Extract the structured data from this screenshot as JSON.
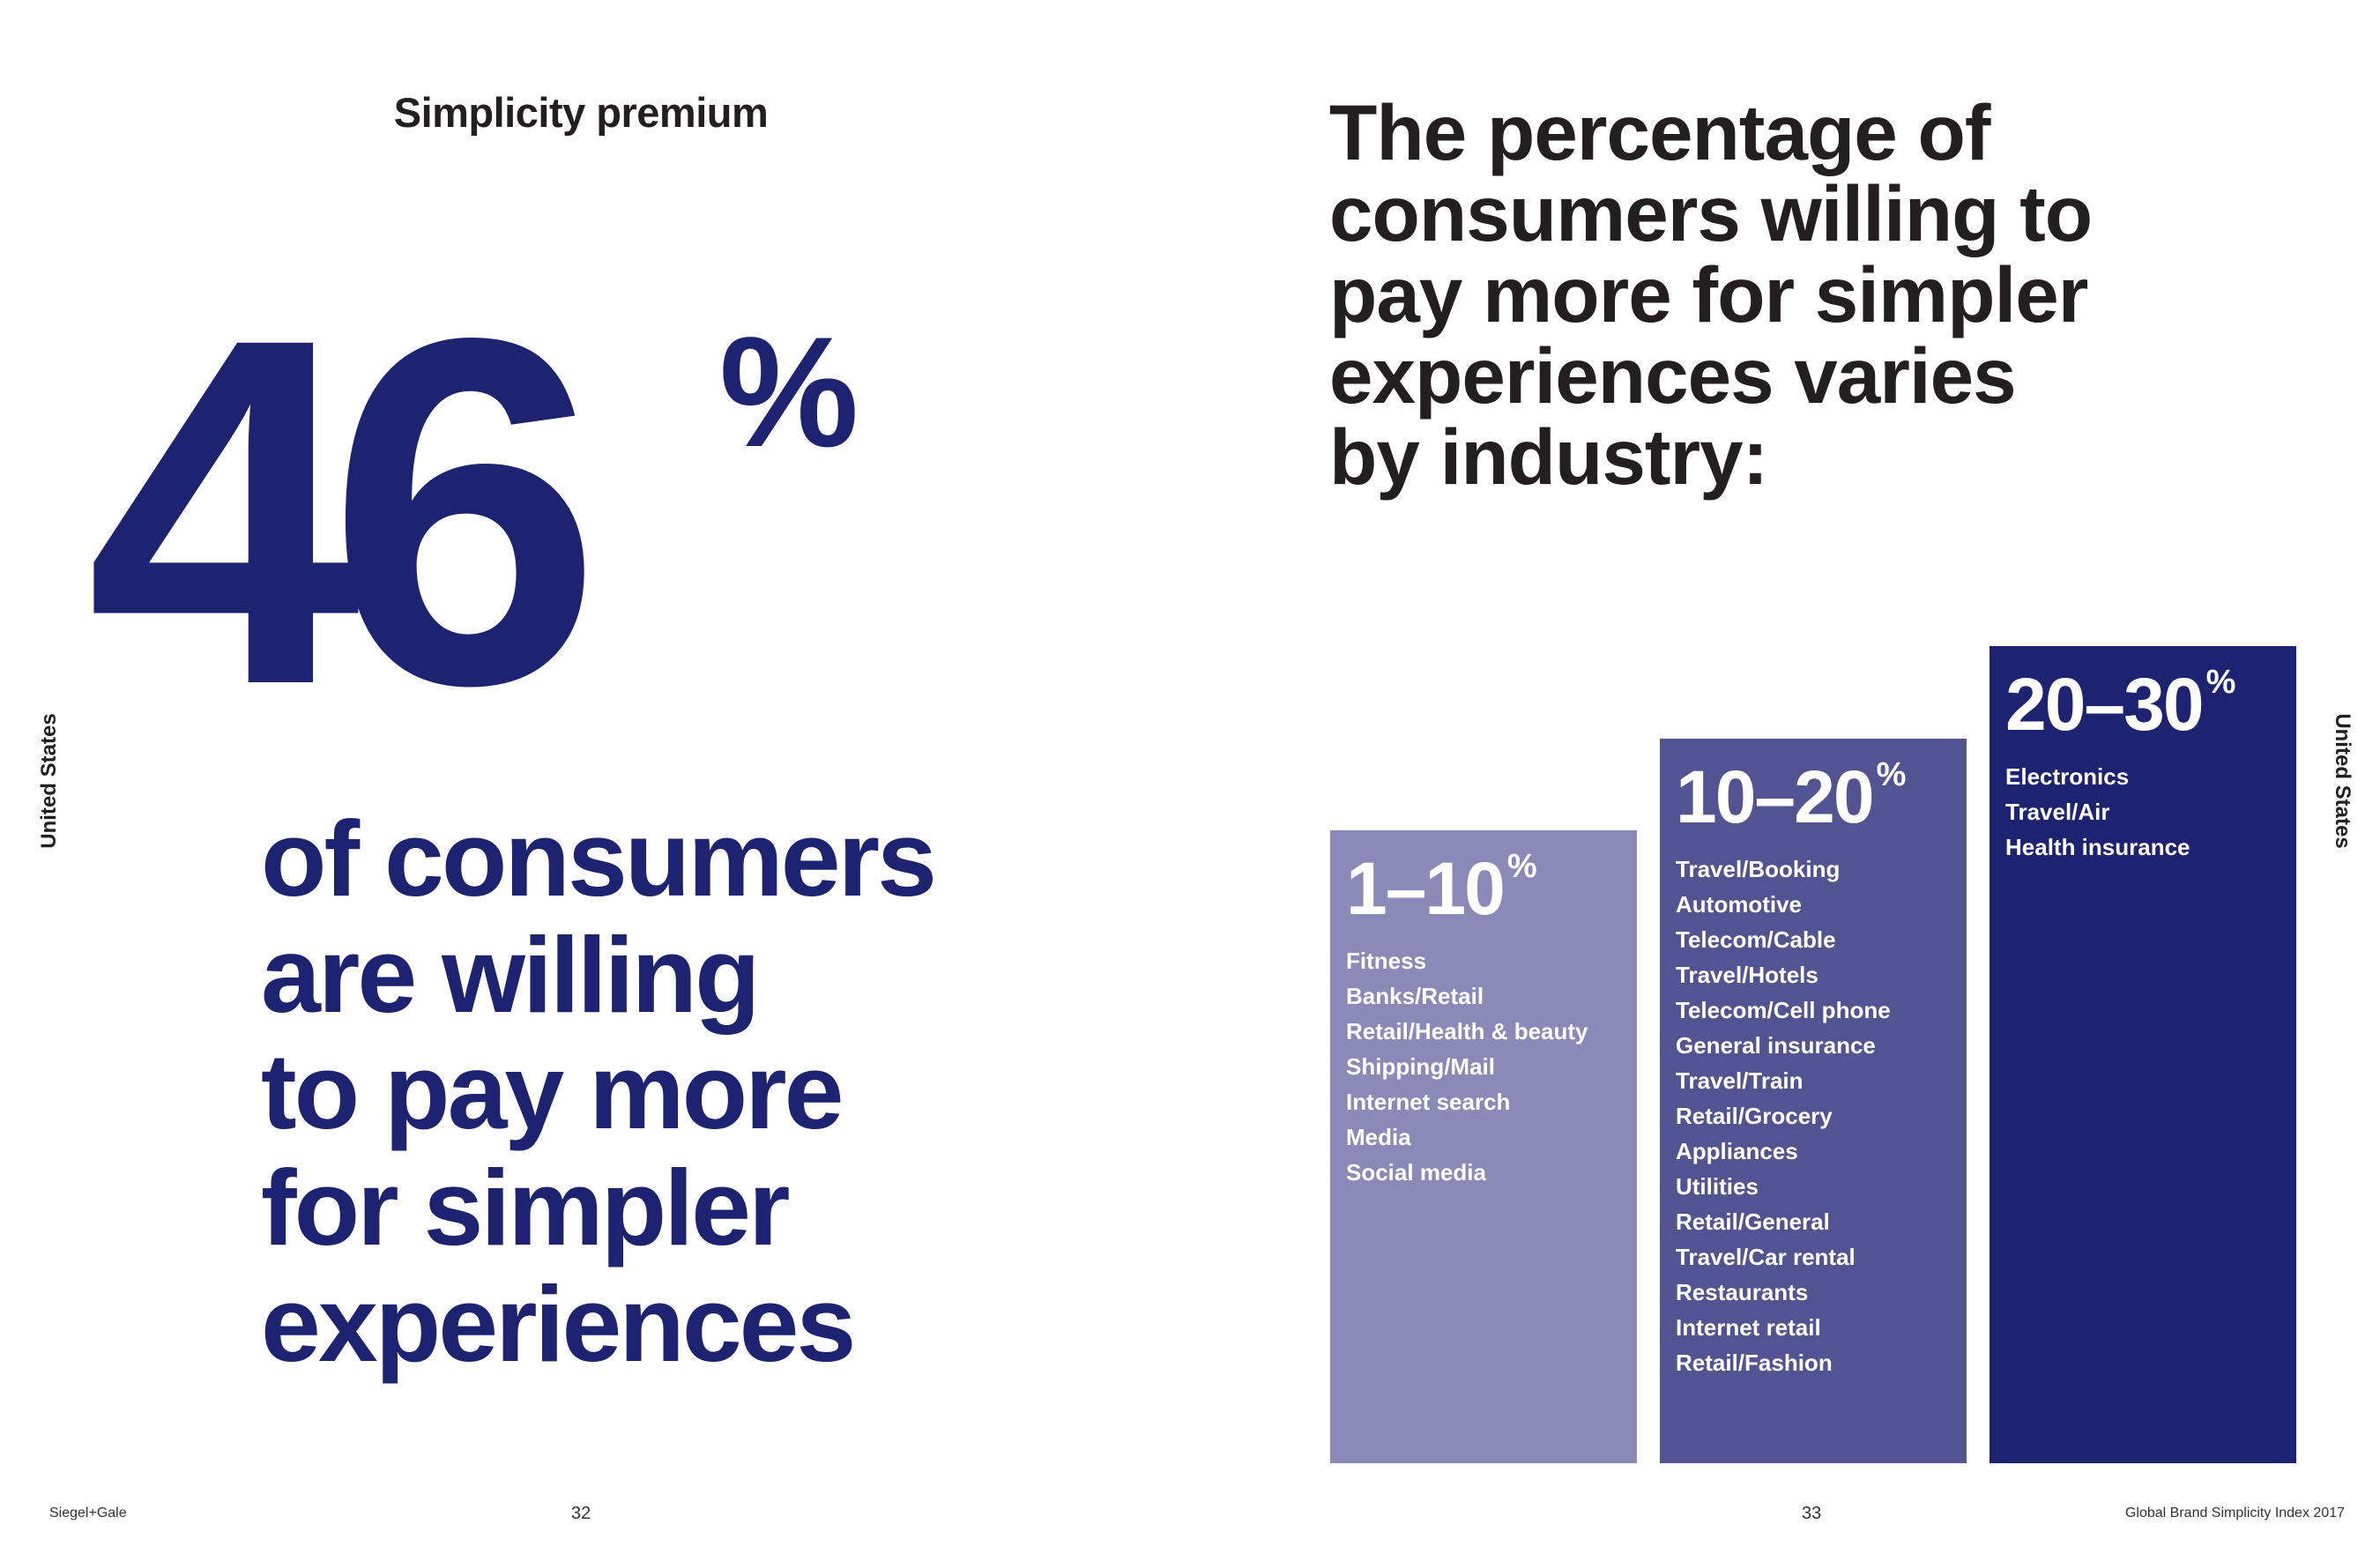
{
  "left_page": {
    "section_title": "Simplicity premium",
    "stat_number": "46",
    "stat_unit": "%",
    "tagline_lines": [
      "of consumers",
      "are willing",
      "to pay more",
      "for simpler",
      "experiences"
    ],
    "side_label": "United States",
    "footer_brand": "Siegel+Gale",
    "page_number": "32"
  },
  "right_page": {
    "headline_lines": [
      "The percentage of",
      "consumers willing to",
      "pay more for simpler",
      "experiences varies",
      "by industry:"
    ],
    "side_label": "United States",
    "footer_title": "Global Brand Simplicity Index 2017",
    "page_number": "33"
  },
  "colors": {
    "navy": "#1d2370",
    "bar_light": "#8a89b7",
    "bar_mid": "#525391",
    "bar_dark": "#1d2370",
    "text": "#231f20"
  },
  "chart_data": {
    "type": "bar",
    "categories": [
      "1–10%",
      "10–20%",
      "20–30%"
    ],
    "series": [
      {
        "values": [
          10,
          20,
          30
        ]
      }
    ],
    "groups": [
      {
        "range": "1–10",
        "unit": "%",
        "industries": [
          "Fitness",
          "Banks/Retail",
          "Retail/Health & beauty",
          "Shipping/Mail",
          "Internet search",
          "Media",
          "Social media"
        ]
      },
      {
        "range": "10–20",
        "unit": "%",
        "industries": [
          "Travel/Booking",
          "Automotive",
          "Telecom/Cable",
          "Travel/Hotels",
          "Telecom/Cell phone",
          "General insurance",
          "Travel/Train",
          "Retail/Grocery",
          "Appliances",
          "Utilities",
          "Retail/General",
          "Travel/Car rental",
          "Restaurants",
          "Internet retail",
          "Retail/Fashion"
        ]
      },
      {
        "range": "20–30",
        "unit": "%",
        "industries": [
          "Electronics",
          "Travel/Air",
          "Health insurance"
        ]
      }
    ],
    "ylim": [
      0,
      30
    ],
    "grid": false,
    "legend": "none"
  }
}
